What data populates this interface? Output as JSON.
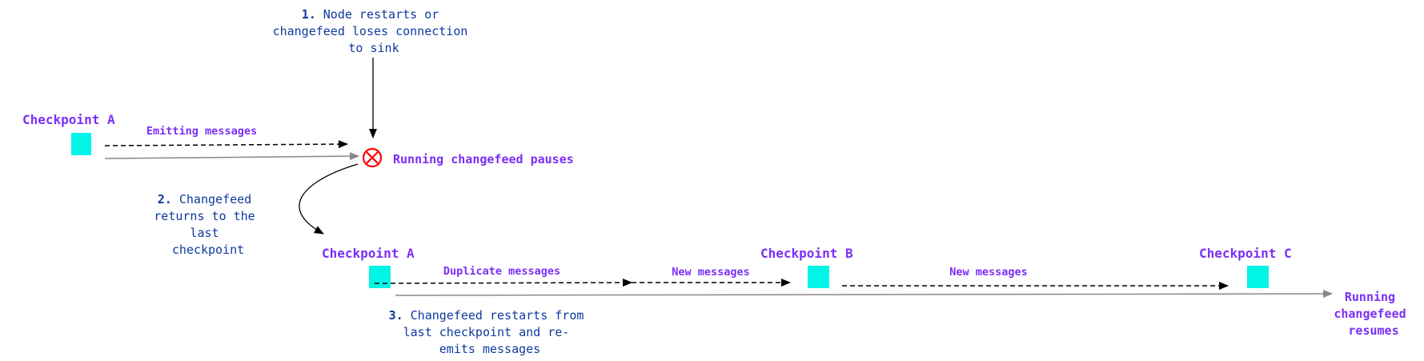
{
  "colors": {
    "label": "#7b2ff7",
    "note": "#0d3a9e",
    "checkpoint": "#00f5e6",
    "error": "#ff0000",
    "timeline": "#888888"
  },
  "notes": {
    "step1": {
      "number": "1.",
      "lines": [
        "Node restarts or",
        "changefeed loses connection",
        "to sink"
      ]
    },
    "step2": {
      "number": "2.",
      "lines": [
        "Changefeed",
        "returns to the",
        "last",
        "checkpoint"
      ]
    },
    "step3": {
      "number": "3.",
      "lines": [
        "Changefeed restarts from",
        "last checkpoint and re-",
        "emits messages"
      ]
    }
  },
  "checkpoints": {
    "first": "Checkpoint A",
    "a": "Checkpoint A",
    "b": "Checkpoint B",
    "c": "Checkpoint C"
  },
  "edges": {
    "emitting": "Emitting messages",
    "duplicate": "Duplicate messages",
    "new1": "New messages",
    "new2": "New messages"
  },
  "states": {
    "paused": "Running changefeed pauses",
    "resumes": [
      "Running",
      "changefeed",
      "resumes"
    ]
  },
  "icons": {
    "error": "circle-x-icon",
    "checkpoint": "square-marker"
  }
}
